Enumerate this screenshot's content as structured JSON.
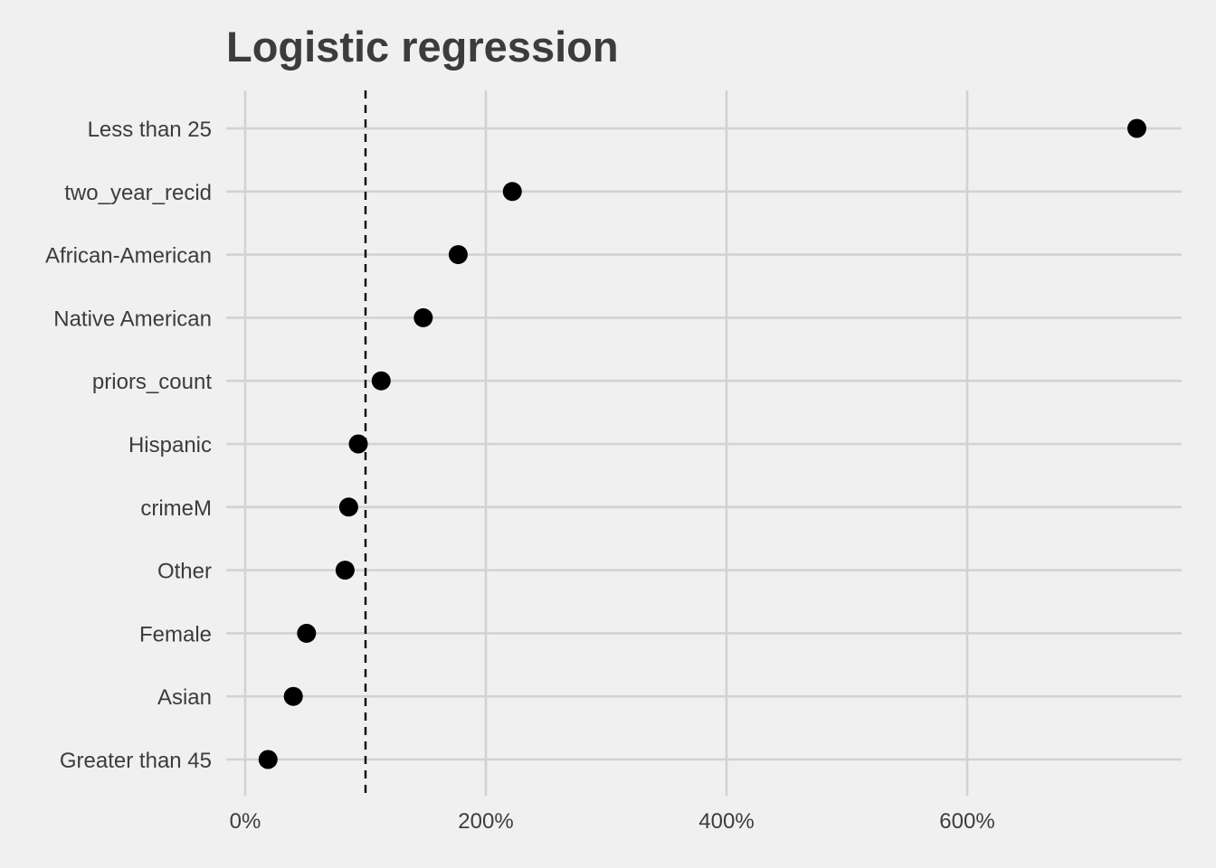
{
  "chart_data": {
    "type": "scatter",
    "title": "Logistic regression",
    "xlabel": "",
    "ylabel": "",
    "xlim": [
      -15,
      780
    ],
    "x_ticks": [
      0,
      200,
      400,
      600
    ],
    "x_tick_labels": [
      "0%",
      "200%",
      "400%",
      "600%"
    ],
    "reference_line": 100,
    "grid": true,
    "categories": [
      "Less than 25",
      "two_year_recid",
      "African-American",
      "Native American",
      "priors_count",
      "Hispanic",
      "crimeM",
      "Other",
      "Female",
      "Asian",
      "Greater than 45"
    ],
    "values": [
      741,
      222,
      177,
      148,
      113,
      94,
      86,
      83,
      51,
      40,
      19
    ],
    "colors": {
      "background": "#f0f0f0",
      "grid": "#d2d2d2",
      "point": "#000000",
      "text": "#3c3c3c"
    }
  }
}
